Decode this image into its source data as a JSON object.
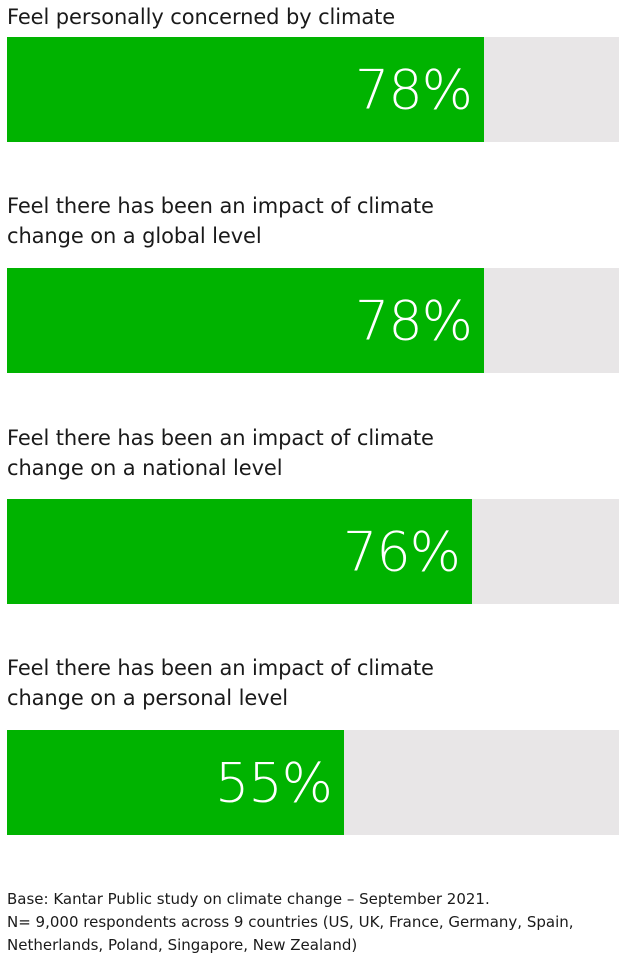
{
  "chart_data": {
    "type": "bar",
    "orientation": "horizontal",
    "categories": [
      "Feel personally concerned by climate change",
      "Feel there has been an impact of climate change on a global level",
      "Feel there has been an impact of climate change on a national level",
      "Feel there has been an impact of climate change on a personal level"
    ],
    "values": [
      78,
      78,
      76,
      55
    ],
    "value_labels": [
      "78%",
      "78%",
      "76%",
      "55%"
    ],
    "xlim": [
      0,
      100
    ],
    "unit": "%",
    "grid": false,
    "legend": "none"
  },
  "colors": {
    "bar": "#00b300",
    "track": "#e8e6e7",
    "value_text": "#ffffff"
  },
  "footnote": {
    "line1": "Base: Kantar Public study on climate change – September 2021.",
    "line2": "N= 9,000 respondents across 9 countries (US, UK, France, Germany, Spain, Netherlands, Poland, Singapore, New Zealand)"
  }
}
